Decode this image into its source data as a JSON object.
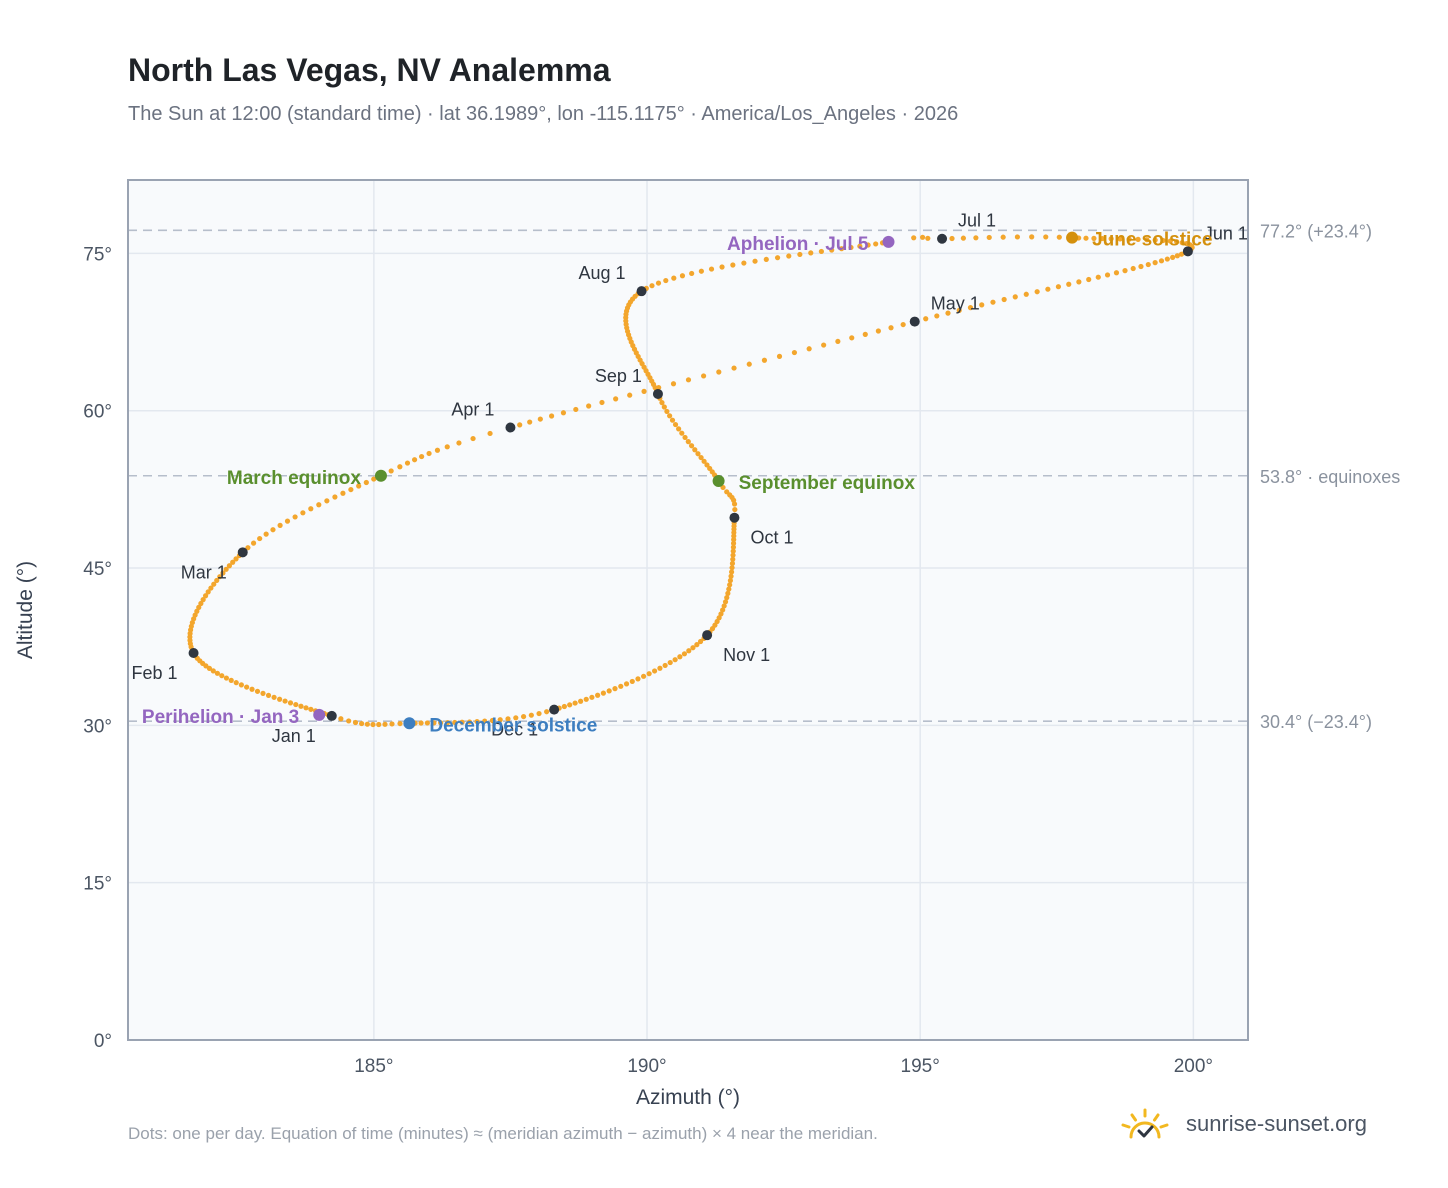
{
  "title": "North Las Vegas, NV Analemma",
  "subtitle": "The Sun at 12:00 (standard time) · lat 36.1989°, lon -115.1175° · America/Los_Angeles · 2026",
  "footnote": "Dots: one per day. Equation of time (minutes) ≈ (meridian azimuth − azimuth) × 4 near the meridian.",
  "brand": {
    "name": "sunrise-sunset.org",
    "icon": "sun-logo-icon"
  },
  "colors": {
    "curve": "#f3a62d",
    "month_marker": "#2f3640",
    "equinox": "#5a8f2e",
    "june_solstice": "#d4900d",
    "december_solstice": "#3d7ec0",
    "apsis": "#9466c0",
    "reference_line": "#b6becb",
    "plot_background": "#f8fafc",
    "axis_border": "#9aa3b2"
  },
  "chart_data": {
    "type": "scatter",
    "title": "North Las Vegas, NV Analemma",
    "xlabel": "Azimuth (°)",
    "ylabel": "Altitude (°)",
    "xlim": [
      180.5,
      201.0
    ],
    "ylim": [
      0,
      82
    ],
    "x_ticks": [
      185,
      190,
      195,
      200
    ],
    "x_tick_labels": [
      "185°",
      "190°",
      "195°",
      "200°"
    ],
    "y_ticks": [
      0,
      15,
      30,
      45,
      60,
      75
    ],
    "y_tick_labels": [
      "0°",
      "15°",
      "30°",
      "45°",
      "60°",
      "75°"
    ],
    "grid": true,
    "reference_lines": [
      {
        "y": 77.2,
        "label": "77.2° (+23.4°)"
      },
      {
        "y": 53.8,
        "label": "53.8° · equinoxes"
      },
      {
        "y": 30.4,
        "label": "30.4° (−23.4°)"
      }
    ],
    "curve_keypoints": [
      {
        "doy": 1,
        "az": 184.23,
        "alt": 30.9
      },
      {
        "doy": 32,
        "az": 181.7,
        "alt": 36.9
      },
      {
        "doy": 60,
        "az": 182.6,
        "alt": 46.5
      },
      {
        "doy": 79,
        "az": 185.13,
        "alt": 53.8
      },
      {
        "doy": 91,
        "az": 187.5,
        "alt": 58.4
      },
      {
        "doy": 121,
        "az": 194.9,
        "alt": 68.5
      },
      {
        "doy": 152,
        "az": 199.9,
        "alt": 75.2
      },
      {
        "doy": 172,
        "az": 197.78,
        "alt": 76.5
      },
      {
        "doy": 182,
        "az": 195.4,
        "alt": 76.4
      },
      {
        "doy": 186,
        "az": 194.42,
        "alt": 76.1
      },
      {
        "doy": 213,
        "az": 189.9,
        "alt": 71.4
      },
      {
        "doy": 244,
        "az": 190.2,
        "alt": 61.6
      },
      {
        "doy": 266,
        "az": 191.31,
        "alt": 53.3
      },
      {
        "doy": 274,
        "az": 191.6,
        "alt": 49.8
      },
      {
        "doy": 305,
        "az": 191.1,
        "alt": 38.6
      },
      {
        "doy": 335,
        "az": 188.3,
        "alt": 31.5
      },
      {
        "doy": 355,
        "az": 185.65,
        "alt": 30.2
      },
      {
        "doy": 366,
        "az": 184.23,
        "alt": 30.9
      }
    ],
    "month_markers": [
      {
        "label": "Jan 1",
        "az": 184.23,
        "alt": 30.9,
        "pos": "below-left"
      },
      {
        "label": "Feb 1",
        "az": 181.7,
        "alt": 36.9,
        "pos": "below-left"
      },
      {
        "label": "Mar 1",
        "az": 182.6,
        "alt": 46.5,
        "pos": "below-left"
      },
      {
        "label": "Apr 1",
        "az": 187.5,
        "alt": 58.4,
        "pos": "above-left"
      },
      {
        "label": "May 1",
        "az": 194.9,
        "alt": 68.5,
        "pos": "above-right"
      },
      {
        "label": "Jun 1",
        "az": 199.9,
        "alt": 75.2,
        "pos": "above-right"
      },
      {
        "label": "Jul 1",
        "az": 195.4,
        "alt": 76.4,
        "pos": "above-right"
      },
      {
        "label": "Aug 1",
        "az": 189.9,
        "alt": 71.4,
        "pos": "above-left"
      },
      {
        "label": "Sep 1",
        "az": 190.2,
        "alt": 61.6,
        "pos": "above-left"
      },
      {
        "label": "Oct 1",
        "az": 191.6,
        "alt": 49.8,
        "pos": "below-right"
      },
      {
        "label": "Nov 1",
        "az": 191.1,
        "alt": 38.6,
        "pos": "below-right"
      },
      {
        "label": "Dec 1",
        "az": 188.3,
        "alt": 31.5,
        "pos": "below-left"
      }
    ],
    "events": [
      {
        "label": "March equinox",
        "az": 185.13,
        "alt": 53.8,
        "kind": "equinox",
        "pos": "left"
      },
      {
        "label": "September equinox",
        "az": 191.31,
        "alt": 53.3,
        "kind": "equinox",
        "pos": "right"
      },
      {
        "label": "June solstice",
        "az": 197.78,
        "alt": 76.5,
        "kind": "june_solstice",
        "pos": "right"
      },
      {
        "label": "December solstice",
        "az": 185.65,
        "alt": 30.2,
        "kind": "december_solstice",
        "pos": "right"
      },
      {
        "label": "Aphelion · Jul 5",
        "az": 194.42,
        "alt": 76.1,
        "kind": "apsis",
        "pos": "left"
      },
      {
        "label": "Perihelion · Jan 3",
        "az": 184.0,
        "alt": 31.0,
        "kind": "apsis",
        "pos": "left"
      }
    ]
  }
}
